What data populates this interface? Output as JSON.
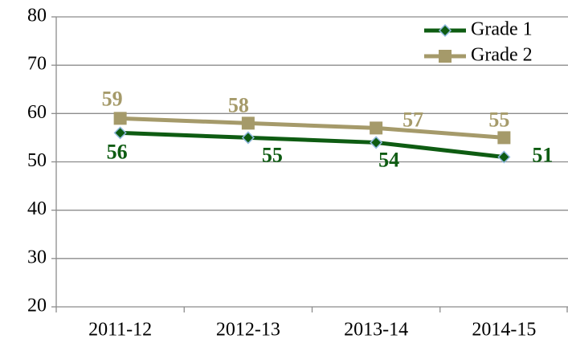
{
  "chart_data": {
    "type": "line",
    "categories": [
      "2011-12",
      "2012-13",
      "2013-14",
      "2014-15"
    ],
    "series": [
      {
        "name": "Grade 1",
        "color": "#0e5c12",
        "marker": "diamond",
        "values": [
          56,
          55,
          54,
          51
        ]
      },
      {
        "name": "Grade 2",
        "color": "#a59a6a",
        "marker": "square",
        "values": [
          59,
          58,
          57,
          55
        ]
      }
    ],
    "ylim": [
      20,
      80
    ],
    "yticks": [
      20,
      30,
      40,
      50,
      60,
      70,
      80
    ],
    "grid": true,
    "legend": "top-right"
  }
}
